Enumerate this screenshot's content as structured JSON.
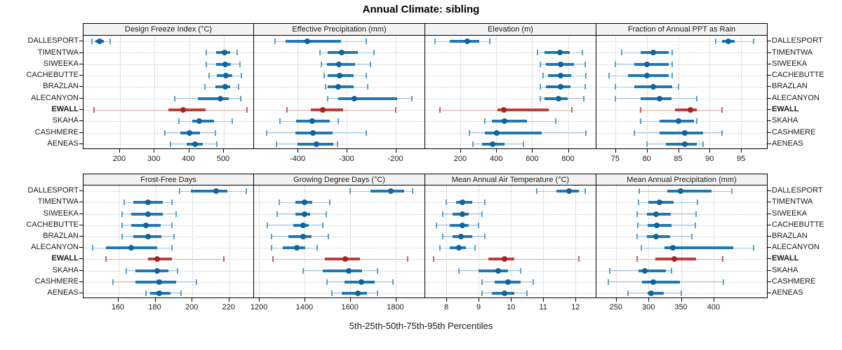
{
  "title": "Annual Climate: sibling",
  "footer": "5th-25th-50th-75th-95th Percentiles",
  "sites": [
    "DALLESPORT",
    "TIMENTWA",
    "SIWEEKA",
    "CACHEBUTTE",
    "BRAZLAN",
    "ALECANYON",
    "EWALL",
    "SKAHA",
    "CASHMERE",
    "AENEAS"
  ],
  "highlight_site": "EWALL",
  "colors": {
    "normal": {
      "line": "#9fc6e0",
      "cap": "#5e9fcc",
      "box": "#1f77b4",
      "dot": "#10639c"
    },
    "highlight": {
      "line": "#e8a7a7",
      "cap": "#cf5f5f",
      "box": "#bf3a3a",
      "dot": "#a92323"
    },
    "grid": "#c8c8c8",
    "strip_bg": "#f2f2f2",
    "border": "#000000"
  },
  "chart_data": {
    "type": "interval-dotplot",
    "percentile_levels": [
      5,
      25,
      50,
      75,
      95
    ],
    "note": "values are [5th,25th,50th,75th,95th] percentiles per site, sites ordered as in sites[]",
    "panels": [
      {
        "title": "Design Freeze Index (°C)",
        "row": 0,
        "col": 0,
        "xlim": [
          95,
          585
        ],
        "ticks": [
          200,
          300,
          400,
          500
        ],
        "values": [
          [
            119,
            130,
            141,
            154,
            171
          ],
          [
            449,
            478,
            501,
            518,
            538
          ],
          [
            450,
            477,
            504,
            521,
            547
          ],
          [
            457,
            480,
            505,
            525,
            550
          ],
          [
            445,
            475,
            504,
            518,
            543
          ],
          [
            359,
            424,
            489,
            513,
            548
          ],
          [
            126,
            340,
            383,
            447,
            566
          ],
          [
            371,
            408,
            430,
            471,
            524
          ],
          [
            330,
            375,
            400,
            432,
            476
          ],
          [
            345,
            393,
            417,
            439,
            479
          ]
        ]
      },
      {
        "title": "Effective Precipitation (mm)",
        "row": 0,
        "col": 1,
        "xlim": [
          -489,
          -142
        ],
        "ticks": [
          -400,
          -300,
          -200
        ],
        "values": [
          [
            -446,
            -424,
            -380,
            -311,
            -259
          ],
          [
            -355,
            -338,
            -310,
            -277,
            -244
          ],
          [
            -352,
            -340,
            -315,
            -283,
            -251
          ],
          [
            -346,
            -338,
            -314,
            -285,
            -259
          ],
          [
            -343,
            -338,
            -317,
            -286,
            -257
          ],
          [
            -339,
            -317,
            -284,
            -196,
            -166
          ],
          [
            -422,
            -373,
            -348,
            -307,
            -200
          ],
          [
            -436,
            -403,
            -370,
            -334,
            -317
          ],
          [
            -463,
            -405,
            -369,
            -328,
            -260
          ],
          [
            -443,
            -400,
            -361,
            -327,
            -318
          ]
        ]
      },
      {
        "title": "Elevation (m)",
        "row": 0,
        "col": 2,
        "xlim": [
          5,
          950
        ],
        "ticks": [
          200,
          400,
          600,
          800
        ],
        "values": [
          [
            60,
            140,
            238,
            307,
            364
          ],
          [
            629,
            668,
            755,
            810,
            880
          ],
          [
            646,
            675,
            760,
            832,
            895
          ],
          [
            662,
            688,
            757,
            816,
            900
          ],
          [
            646,
            675,
            757,
            812,
            895
          ],
          [
            646,
            668,
            747,
            799,
            888
          ],
          [
            85,
            408,
            442,
            694,
            822
          ],
          [
            338,
            375,
            445,
            570,
            733
          ],
          [
            250,
            335,
            405,
            655,
            900
          ],
          [
            272,
            320,
            380,
            445,
            552
          ]
        ]
      },
      {
        "title": "Fraction of Annual PPT as Rain",
        "row": 0,
        "col": 3,
        "xlim": [
          72,
          99
        ],
        "ticks": [
          75,
          80,
          85,
          90,
          95
        ],
        "values": [
          [
            91,
            92,
            93,
            94,
            97
          ],
          [
            76,
            79,
            81,
            83.5,
            84
          ],
          [
            75,
            78,
            80,
            83.5,
            84
          ],
          [
            74,
            77,
            80,
            83.5,
            84
          ],
          [
            75,
            78,
            81,
            84,
            85
          ],
          [
            75,
            79,
            82,
            84,
            88
          ],
          [
            79,
            84.5,
            87,
            88,
            92
          ],
          [
            79,
            82,
            85,
            87.5,
            88
          ],
          [
            78,
            82,
            86,
            89,
            92
          ],
          [
            80,
            83,
            86,
            88,
            89
          ]
        ]
      },
      {
        "title": "Frost-Free Days",
        "row": 1,
        "col": 0,
        "xlim": [
          141,
          233
        ],
        "ticks": [
          160,
          180,
          200,
          220
        ],
        "values": [
          [
            193,
            199,
            213,
            219,
            229
          ],
          [
            163,
            168,
            176,
            184,
            189
          ],
          [
            162,
            167,
            176,
            184,
            191
          ],
          [
            162,
            167,
            175,
            183,
            189
          ],
          [
            162,
            168,
            176,
            183,
            190
          ],
          [
            146,
            153,
            167,
            181,
            189
          ],
          [
            153,
            176,
            181,
            189,
            217
          ],
          [
            164,
            169,
            181,
            187,
            192
          ],
          [
            157,
            169,
            182,
            191,
            202
          ],
          [
            175,
            177,
            182,
            188,
            194
          ]
        ]
      },
      {
        "title": "Growing Degree Days (°C)",
        "row": 1,
        "col": 1,
        "xlim": [
          1178,
          1925
        ],
        "ticks": [
          1200,
          1400,
          1600,
          1800
        ],
        "values": [
          [
            1600,
            1690,
            1780,
            1840,
            1875
          ],
          [
            1290,
            1360,
            1400,
            1435,
            1510
          ],
          [
            1280,
            1360,
            1400,
            1425,
            1495
          ],
          [
            1235,
            1350,
            1395,
            1420,
            1480
          ],
          [
            1255,
            1330,
            1395,
            1430,
            1505
          ],
          [
            1255,
            1305,
            1365,
            1405,
            1455
          ],
          [
            1260,
            1490,
            1580,
            1645,
            1855
          ],
          [
            1395,
            1480,
            1595,
            1655,
            1720
          ],
          [
            1500,
            1575,
            1650,
            1710,
            1790
          ],
          [
            1520,
            1565,
            1635,
            1675,
            1720
          ]
        ]
      },
      {
        "title": "Mean Annual Air Temperature (°C)",
        "row": 1,
        "col": 2,
        "xlim": [
          7.35,
          12.6
        ],
        "ticks": [
          8,
          9,
          10,
          11,
          12
        ],
        "values": [
          [
            10.8,
            11.4,
            11.8,
            12.1,
            12.3
          ],
          [
            8.0,
            8.3,
            8.5,
            8.8,
            9.2
          ],
          [
            7.9,
            8.2,
            8.5,
            8.7,
            9.1
          ],
          [
            7.7,
            8.1,
            8.5,
            8.7,
            9.0
          ],
          [
            7.9,
            8.2,
            8.45,
            8.8,
            9.2
          ],
          [
            7.8,
            8.1,
            8.4,
            8.6,
            8.9
          ],
          [
            7.6,
            9.3,
            9.8,
            10.1,
            12.1
          ],
          [
            8.4,
            9.0,
            9.6,
            9.9,
            10.3
          ],
          [
            9.1,
            9.5,
            9.9,
            10.3,
            10.7
          ],
          [
            9.1,
            9.4,
            9.8,
            10.1,
            10.5
          ]
        ]
      },
      {
        "title": "Mean Annual Precipitation (mm)",
        "row": 1,
        "col": 3,
        "xlim": [
          220,
          481
        ],
        "ticks": [
          250,
          300,
          350,
          400
        ],
        "values": [
          [
            286,
            329,
            349,
            397,
            428
          ],
          [
            285,
            300,
            317,
            339,
            375
          ],
          [
            283,
            298,
            312,
            334,
            373
          ],
          [
            284,
            299,
            313,
            336,
            372
          ],
          [
            283,
            298,
            312,
            333,
            367
          ],
          [
            289,
            325,
            337,
            430,
            462
          ],
          [
            283,
            311,
            340,
            373,
            414
          ],
          [
            240,
            285,
            294,
            327,
            335
          ],
          [
            238,
            290,
            307,
            348,
            415
          ],
          [
            269,
            299,
            304,
            324,
            350
          ]
        ]
      }
    ]
  }
}
